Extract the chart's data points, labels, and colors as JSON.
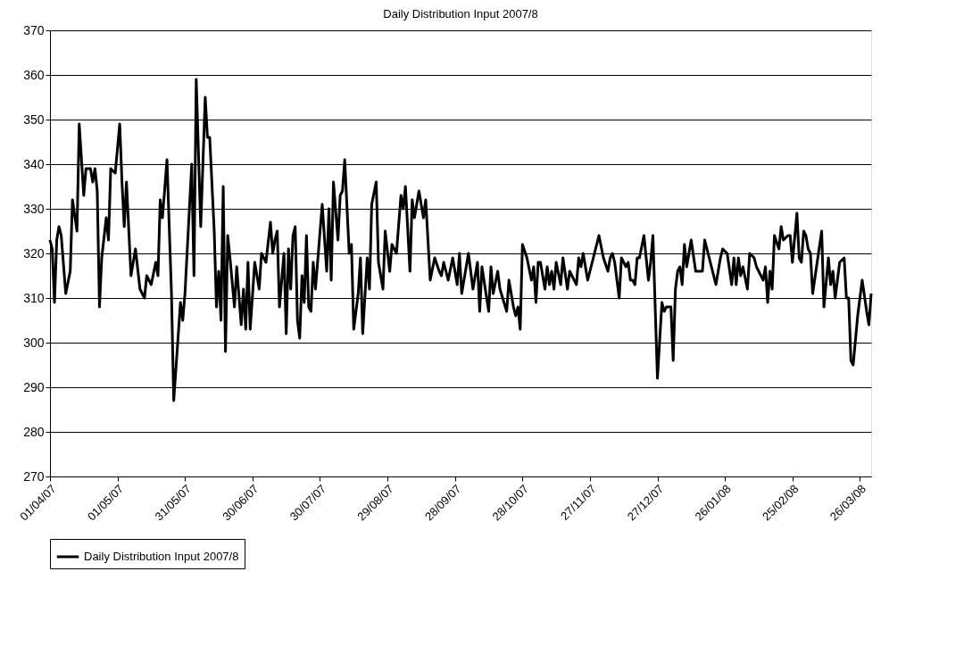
{
  "chart_data": {
    "type": "line",
    "title": "Daily Distribution Input 2007/8",
    "x": [
      "2007-04-01",
      "2007-04-02",
      "2007-04-03",
      "2007-04-04",
      "2007-04-05",
      "2007-04-06",
      "2007-04-08",
      "2007-04-10",
      "2007-04-11",
      "2007-04-13",
      "2007-04-14",
      "2007-04-16",
      "2007-04-17",
      "2007-04-19",
      "2007-04-20",
      "2007-04-21",
      "2007-04-22",
      "2007-04-23",
      "2007-04-24",
      "2007-04-26",
      "2007-04-27",
      "2007-04-28",
      "2007-04-30",
      "2007-05-02",
      "2007-05-03",
      "2007-05-04",
      "2007-05-05",
      "2007-05-07",
      "2007-05-09",
      "2007-05-11",
      "2007-05-13",
      "2007-05-14",
      "2007-05-16",
      "2007-05-18",
      "2007-05-19",
      "2007-05-20",
      "2007-05-21",
      "2007-05-23",
      "2007-05-25",
      "2007-05-26",
      "2007-05-29",
      "2007-05-30",
      "2007-05-31",
      "2007-06-03",
      "2007-06-04",
      "2007-06-05",
      "2007-06-07",
      "2007-06-09",
      "2007-06-10",
      "2007-06-11",
      "2007-06-13",
      "2007-06-14",
      "2007-06-15",
      "2007-06-16",
      "2007-06-17",
      "2007-06-18",
      "2007-06-19",
      "2007-06-20",
      "2007-06-22",
      "2007-06-23",
      "2007-06-25",
      "2007-06-26",
      "2007-06-27",
      "2007-06-28",
      "2007-06-29",
      "2007-07-01",
      "2007-07-03",
      "2007-07-04",
      "2007-07-06",
      "2007-07-08",
      "2007-07-09",
      "2007-07-10",
      "2007-07-11",
      "2007-07-12",
      "2007-07-14",
      "2007-07-15",
      "2007-07-16",
      "2007-07-17",
      "2007-07-18",
      "2007-07-19",
      "2007-07-20",
      "2007-07-21",
      "2007-07-22",
      "2007-07-23",
      "2007-07-24",
      "2007-07-25",
      "2007-07-26",
      "2007-07-27",
      "2007-07-28",
      "2007-07-31",
      "2007-08-02",
      "2007-08-03",
      "2007-08-04",
      "2007-08-05",
      "2007-08-07",
      "2007-08-08",
      "2007-08-09",
      "2007-08-10",
      "2007-08-12",
      "2007-08-13",
      "2007-08-14",
      "2007-08-16",
      "2007-08-17",
      "2007-08-18",
      "2007-08-20",
      "2007-08-21",
      "2007-08-22",
      "2007-08-24",
      "2007-08-25",
      "2007-08-27",
      "2007-08-28",
      "2007-08-30",
      "2007-08-31",
      "2007-09-02",
      "2007-09-04",
      "2007-09-05",
      "2007-09-06",
      "2007-09-08",
      "2007-09-09",
      "2007-09-10",
      "2007-09-12",
      "2007-09-14",
      "2007-09-15",
      "2007-09-17",
      "2007-09-19",
      "2007-09-21",
      "2007-09-22",
      "2007-09-23",
      "2007-09-25",
      "2007-09-27",
      "2007-09-29",
      "2007-09-30",
      "2007-10-01",
      "2007-10-03",
      "2007-10-04",
      "2007-10-06",
      "2007-10-08",
      "2007-10-09",
      "2007-10-10",
      "2007-10-13",
      "2007-10-14",
      "2007-10-15",
      "2007-10-17",
      "2007-10-18",
      "2007-10-21",
      "2007-10-22",
      "2007-10-24",
      "2007-10-25",
      "2007-10-26",
      "2007-10-27",
      "2007-10-28",
      "2007-10-30",
      "2007-11-01",
      "2007-11-02",
      "2007-11-03",
      "2007-11-04",
      "2007-11-05",
      "2007-11-07",
      "2007-11-08",
      "2007-11-09",
      "2007-11-10",
      "2007-11-11",
      "2007-11-12",
      "2007-11-14",
      "2007-11-15",
      "2007-11-17",
      "2007-11-18",
      "2007-11-21",
      "2007-11-22",
      "2007-11-23",
      "2007-11-24",
      "2007-11-26",
      "2007-11-28",
      "2007-12-01",
      "2007-12-03",
      "2007-12-05",
      "2007-12-06",
      "2007-12-07",
      "2007-12-08",
      "2007-12-10",
      "2007-12-11",
      "2007-12-13",
      "2007-12-14",
      "2007-12-15",
      "2007-12-16",
      "2007-12-17",
      "2007-12-18",
      "2007-12-19",
      "2007-12-21",
      "2007-12-22",
      "2007-12-23",
      "2007-12-24",
      "2007-12-25",
      "2007-12-27",
      "2007-12-29",
      "2007-12-30",
      "2007-12-31",
      "2008-01-02",
      "2008-01-03",
      "2008-01-04",
      "2008-01-05",
      "2008-01-06",
      "2008-01-07",
      "2008-01-08",
      "2008-01-09",
      "2008-01-11",
      "2008-01-13",
      "2008-01-14",
      "2008-01-16",
      "2008-01-17",
      "2008-01-19",
      "2008-01-20",
      "2008-01-21",
      "2008-01-22",
      "2008-01-24",
      "2008-01-25",
      "2008-01-27",
      "2008-01-29",
      "2008-01-30",
      "2008-01-31",
      "2008-02-01",
      "2008-02-02",
      "2008-02-03",
      "2008-02-05",
      "2008-02-06",
      "2008-02-08",
      "2008-02-09",
      "2008-02-10",
      "2008-02-12",
      "2008-02-13",
      "2008-02-14",
      "2008-02-15",
      "2008-02-16",
      "2008-02-17",
      "2008-02-19",
      "2008-02-20",
      "2008-02-21",
      "2008-02-23",
      "2008-02-24",
      "2008-02-25",
      "2008-02-27",
      "2008-02-28",
      "2008-02-29",
      "2008-03-01",
      "2008-03-02",
      "2008-03-03",
      "2008-03-04",
      "2008-03-05",
      "2008-03-09",
      "2008-03-10",
      "2008-03-12",
      "2008-03-13",
      "2008-03-14",
      "2008-03-15",
      "2008-03-17",
      "2008-03-19",
      "2008-03-20",
      "2008-03-21",
      "2008-03-22",
      "2008-03-23",
      "2008-03-25",
      "2008-03-27",
      "2008-03-29",
      "2008-03-30",
      "2008-03-31"
    ],
    "series": [
      {
        "name": "Daily Distribution Input 2007/8",
        "color": "#000000",
        "values": [
          323,
          321,
          309,
          323,
          326,
          324,
          311,
          316,
          332,
          325,
          349,
          333,
          339,
          339,
          336,
          339,
          334,
          308,
          319,
          328,
          323,
          339,
          338,
          349,
          336,
          326,
          336,
          315,
          321,
          312,
          310,
          315,
          313,
          318,
          315,
          332,
          328,
          341,
          311,
          287,
          309,
          305,
          311,
          340,
          315,
          359,
          326,
          355,
          346,
          346,
          325,
          308,
          316,
          305,
          335,
          298,
          324,
          319,
          308,
          317,
          304,
          312,
          303,
          318,
          303,
          318,
          312,
          320,
          318,
          327,
          320,
          323,
          325,
          308,
          320,
          302,
          321,
          312,
          324,
          326,
          305,
          301,
          315,
          309,
          324,
          308,
          307,
          318,
          312,
          331,
          316,
          330,
          314,
          336,
          323,
          333,
          334,
          341,
          320,
          322,
          303,
          311,
          319,
          302,
          319,
          312,
          331,
          336,
          318,
          312,
          325,
          316,
          322,
          320,
          333,
          330,
          335,
          316,
          332,
          328,
          334,
          328,
          332,
          314,
          319,
          316,
          315,
          318,
          314,
          319,
          313,
          320,
          311,
          317,
          320,
          312,
          318,
          307,
          317,
          307,
          317,
          311,
          316,
          312,
          307,
          314,
          308,
          306,
          308,
          303,
          322,
          319,
          314,
          317,
          309,
          318,
          318,
          312,
          317,
          313,
          316,
          312,
          318,
          313,
          319,
          312,
          316,
          313,
          319,
          317,
          320,
          314,
          318,
          324,
          319,
          316,
          319,
          320,
          318,
          310,
          319,
          317,
          318,
          314,
          314,
          313,
          319,
          319,
          324,
          319,
          314,
          318,
          324,
          292,
          309,
          307,
          308,
          308,
          296,
          312,
          316,
          317,
          313,
          322,
          317,
          323,
          316,
          316,
          316,
          323,
          319,
          317,
          315,
          313,
          319,
          321,
          320,
          313,
          319,
          313,
          319,
          315,
          317,
          312,
          320,
          319,
          317,
          316,
          314,
          317,
          309,
          316,
          312,
          324,
          321,
          326,
          323,
          324,
          324,
          318,
          329,
          319,
          318,
          325,
          324,
          321,
          320,
          311,
          325,
          308,
          319,
          313,
          316,
          310,
          318,
          319,
          310,
          310,
          296,
          295,
          306,
          314,
          307,
          304,
          311
        ]
      }
    ],
    "ylim": [
      270,
      370
    ],
    "yticks": [
      270,
      280,
      290,
      300,
      310,
      320,
      330,
      340,
      350,
      360,
      370
    ],
    "xlim": [
      "2007-04-01",
      "2008-03-31"
    ],
    "xticks": [
      {
        "value": "2007-04-01",
        "label": "01/04/07"
      },
      {
        "value": "2007-05-01",
        "label": "01/05/07"
      },
      {
        "value": "2007-05-31",
        "label": "31/05/07"
      },
      {
        "value": "2007-06-30",
        "label": "30/06/07"
      },
      {
        "value": "2007-07-30",
        "label": "30/07/07"
      },
      {
        "value": "2007-08-29",
        "label": "29/08/07"
      },
      {
        "value": "2007-09-28",
        "label": "28/09/07"
      },
      {
        "value": "2007-10-28",
        "label": "28/10/07"
      },
      {
        "value": "2007-11-27",
        "label": "27/11/07"
      },
      {
        "value": "2007-12-27",
        "label": "27/12/07"
      },
      {
        "value": "2008-01-26",
        "label": "26/01/08"
      },
      {
        "value": "2008-02-25",
        "label": "25/02/08"
      },
      {
        "value": "2008-03-26",
        "label": "26/03/08"
      }
    ],
    "grid": "y",
    "legend": "bottom",
    "line_style": "solid",
    "marker": "none"
  }
}
